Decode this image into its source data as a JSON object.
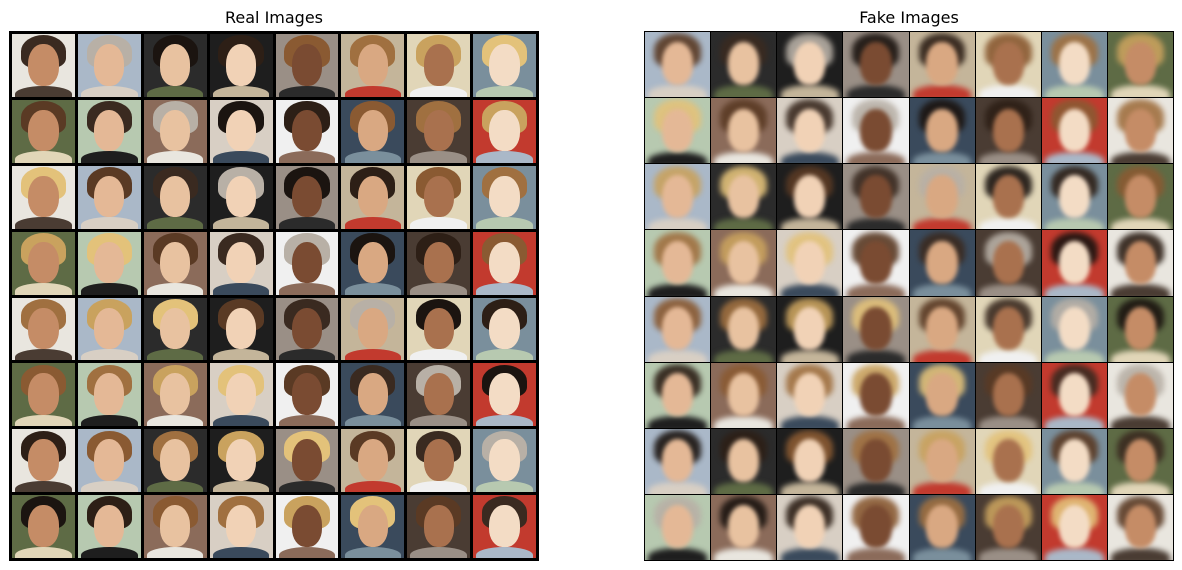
{
  "left_panel": {
    "title": "Real Images",
    "rows": 8,
    "cols": 8
  },
  "right_panel": {
    "title": "Fake Images",
    "rows": 8,
    "cols": 8
  },
  "palettes": {
    "backgrounds": [
      "#d8cfc4",
      "#2b2b2b",
      "#b7c9b0",
      "#e9e6df",
      "#7a8f9c",
      "#4a3c33",
      "#c4b59a",
      "#f0f0f0",
      "#1e1e1e",
      "#8b6b5a",
      "#aab8c8",
      "#5e6b45",
      "#c23a2e",
      "#e1d6b8",
      "#3a4a5c",
      "#9a8f86"
    ],
    "skins": [
      "#e8c2a0",
      "#d9a882",
      "#c58c66",
      "#f1d2b6",
      "#a9714e",
      "#e4b896",
      "#7a4b32",
      "#f3dcc5"
    ],
    "hairs": [
      "#e3c27a",
      "#3a2a20",
      "#1b1410",
      "#8a5a32",
      "#c9a25e",
      "#5a3a24",
      "#b8b0a6",
      "#2d1f16",
      "#a07040"
    ]
  }
}
